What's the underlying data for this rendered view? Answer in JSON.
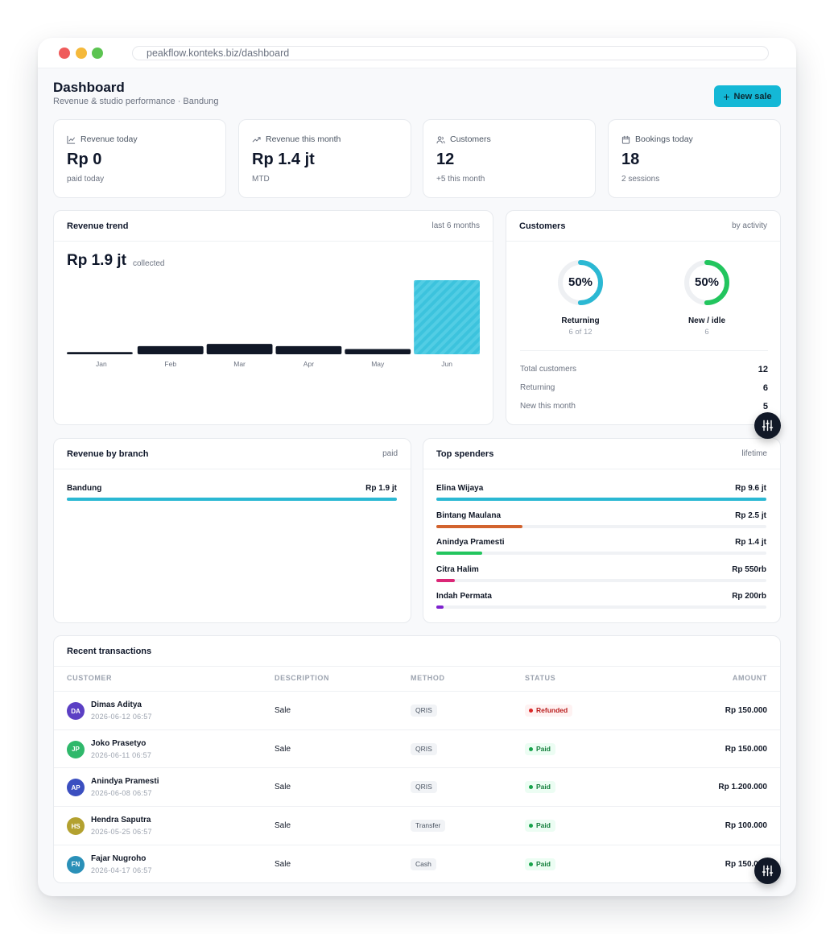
{
  "browser": {
    "url": "peakflow.konteks.biz/dashboard"
  },
  "header": {
    "title": "Dashboard",
    "subtitle": "Revenue & studio performance · Bandung",
    "new_sale_label": "New sale"
  },
  "stats": [
    {
      "label": "Revenue today",
      "value": "Rp 0",
      "hint": "paid today",
      "icon": "chart-line-icon"
    },
    {
      "label": "Revenue this month",
      "value": "Rp 1.4 jt",
      "hint": "MTD",
      "icon": "trending-up-icon"
    },
    {
      "label": "Customers",
      "value": "12",
      "hint": "+5 this month",
      "icon": "users-icon"
    },
    {
      "label": "Bookings today",
      "value": "18",
      "hint": "2 sessions",
      "icon": "calendar-icon"
    }
  ],
  "revenue_trend": {
    "title": "Revenue trend",
    "meta": "last 6 months",
    "total": "Rp 1.9 jt",
    "total_note": "collected"
  },
  "chart_data": {
    "type": "bar",
    "categories": [
      "Jan",
      "Feb",
      "Mar",
      "Apr",
      "May",
      "Jun"
    ],
    "values": [
      0.03,
      0.11,
      0.14,
      0.11,
      0.07,
      1.0
    ],
    "highlight_index": 5,
    "colors": {
      "bar": "#111827",
      "highlight": "#3cc3dd"
    }
  },
  "customers": {
    "title": "Customers",
    "meta": "by activity",
    "donuts": [
      {
        "pct_label": "50%",
        "pct": 0.5,
        "label": "Returning",
        "note": "6 of 12",
        "color": "#2bb8d3"
      },
      {
        "pct_label": "50%",
        "pct": 0.5,
        "label": "New / idle",
        "note": "6",
        "color": "#22c55e"
      }
    ],
    "rows": [
      {
        "label": "Total customers",
        "value": "12"
      },
      {
        "label": "Returning",
        "value": "6"
      },
      {
        "label": "New this month",
        "value": "5"
      }
    ]
  },
  "branch": {
    "title": "Revenue by branch",
    "meta": "paid",
    "rows": [
      {
        "name": "Bandung",
        "amount": "Rp 1.9 jt",
        "pct": 1.0,
        "color": "#2bb8d3"
      }
    ]
  },
  "spenders": {
    "title": "Top spenders",
    "meta": "lifetime",
    "rows": [
      {
        "name": "Elina Wijaya",
        "amount": "Rp 9.6 jt",
        "pct": 1.0,
        "color": "#2bb8d3"
      },
      {
        "name": "Bintang Maulana",
        "amount": "Rp 2.5 jt",
        "pct": 0.26,
        "color": "#d2632e"
      },
      {
        "name": "Anindya Pramesti",
        "amount": "Rp 1.4 jt",
        "pct": 0.14,
        "color": "#22c55e"
      },
      {
        "name": "Citra Halim",
        "amount": "Rp 550rb",
        "pct": 0.057,
        "color": "#db2777"
      },
      {
        "name": "Indah Permata",
        "amount": "Rp 200rb",
        "pct": 0.021,
        "color": "#7e22ce"
      }
    ]
  },
  "transactions": {
    "title": "Recent transactions",
    "columns": [
      "CUSTOMER",
      "DESCRIPTION",
      "METHOD",
      "STATUS",
      "AMOUNT"
    ],
    "rows": [
      {
        "initials": "DA",
        "avatar_color": "#5b3fc4",
        "name": "Dimas Aditya",
        "date": "2026-06-12 06:57",
        "description": "Sale",
        "method": "QRIS",
        "status": "Refunded",
        "status_kind": "refunded",
        "amount": "Rp 150.000"
      },
      {
        "initials": "JP",
        "avatar_color": "#2fb86b",
        "name": "Joko Prasetyo",
        "date": "2026-06-11 06:57",
        "description": "Sale",
        "method": "QRIS",
        "status": "Paid",
        "status_kind": "paid",
        "amount": "Rp 150.000"
      },
      {
        "initials": "AP",
        "avatar_color": "#3b4fc0",
        "name": "Anindya Pramesti",
        "date": "2026-06-08 06:57",
        "description": "Sale",
        "method": "QRIS",
        "status": "Paid",
        "status_kind": "paid",
        "amount": "Rp 1.200.000"
      },
      {
        "initials": "HS",
        "avatar_color": "#b3a12f",
        "name": "Hendra Saputra",
        "date": "2026-05-25 06:57",
        "description": "Sale",
        "method": "Transfer",
        "status": "Paid",
        "status_kind": "paid",
        "amount": "Rp 100.000"
      },
      {
        "initials": "FN",
        "avatar_color": "#2a90b8",
        "name": "Fajar Nugroho",
        "date": "2026-04-17 06:57",
        "description": "Sale",
        "method": "Cash",
        "status": "Paid",
        "status_kind": "paid",
        "amount": "Rp 150.000"
      }
    ]
  }
}
